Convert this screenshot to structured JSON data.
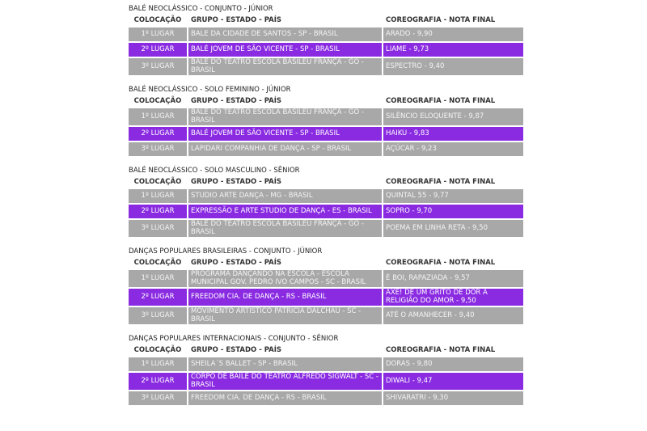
{
  "sections": [
    {
      "title": "BALÉ NEOCLÁSSICO - CONJUNTO - JÚNIOR",
      "header": [
        "COLOCAÇÃO",
        "GRUPO - ESTADO - PAÍS",
        "COREOGRAFIA - NOTA FINAL"
      ],
      "rows": [
        [
          "1º LUGAR",
          "BALE DA CIDADE DE SANTOS - SP - BRASIL",
          "ARADO - 9,90"
        ],
        [
          "2º LUGAR",
          "BALÉ JOVEM DE SÃO VICENTE - SP - BRASIL",
          "LIAME - 9,73"
        ],
        [
          "3º LUGAR",
          "BALÉ DO TEATRO ESCOLA BASILEU FRANÇA - GO - BRASIL",
          "ESPECTRO - 9,40"
        ]
      ]
    },
    {
      "title": "BALÉ NEOCLÁSSICO - SOLO FEMININO - JÚNIOR",
      "header": [
        "COLOCAÇÃO",
        "GRUPO - ESTADO - PAÍS",
        "COREOGRAFIA - NOTA FINAL"
      ],
      "rows": [
        [
          "1º LUGAR",
          "BALÉ DO TEATRO ESCOLA BASILEU FRANÇA - GO - BRASIL",
          "SILÊNCIO ELOQUENTE - 9,87"
        ],
        [
          "2º LUGAR",
          "BALÉ JOVEM DE SÃO VICENTE - SP - BRASIL",
          "HAIKU - 9,83"
        ],
        [
          "3º LUGAR",
          "LAPIDARI COMPANHIA DE DANÇA - SP - BRASIL",
          "AÇÚCAR - 9,23"
        ]
      ]
    },
    {
      "title": "BALÉ NEOCLÁSSICO - SOLO MASCULINO - SÊNIOR",
      "header": [
        "COLOCAÇÃO",
        "GRUPO - ESTADO - PAÍS",
        "COREOGRAFIA - NOTA FINAL"
      ],
      "rows": [
        [
          "1º LUGAR",
          "STUDIO ARTE DANÇA - MG - BRASIL",
          "QUINTAL 55 - 9,77"
        ],
        [
          "2º LUGAR",
          "EXPRESSÃO E ARTE STUDIO DE DANÇA - ES - BRASIL",
          "SOPRO - 9,70"
        ],
        [
          "3º LUGAR",
          "BALÉ DO TEATRO ESCOLA BASILEU FRANÇA - GO - BRASIL",
          "POEMA EM LINHA RETA - 9,50"
        ]
      ]
    },
    {
      "title": "DANÇAS POPULARES BRASILEIRAS - CONJUNTO - JÚNIOR",
      "header": [
        "COLOCAÇÃO",
        "GRUPO - ESTADO - PAÍS",
        "COREOGRAFIA - NOTA FINAL"
      ],
      "rows": [
        [
          "1º LUGAR",
          "PROGRAMA DANÇANDO NA ESCOLA - ESCOLA MUNICIPAL GOV. PEDRO IVO CAMPOS - SC - BRASIL",
          "É BOI, RAPAZIADA - 9,57"
        ],
        [
          "2º LUGAR",
          "FREEDOM CIA. DE DANÇA - RS - BRASIL",
          "AXÉ! DE UM GRITO DE DOR A RELIGIÃO DO AMOR - 9,50"
        ],
        [
          "3º LUGAR",
          "MOVIMENTO ARTÍSTICO PATRICIA DALCHAU - SC - BRASIL",
          "ATÉ O AMANHECER - 9,40"
        ]
      ]
    },
    {
      "title": "DANÇAS POPULARES INTERNACIONAIS - CONJUNTO - SÊNIOR",
      "header": [
        "COLOCAÇÃO",
        "GRUPO - ESTADO - PAÍS",
        "COREOGRAFIA - NOTA FINAL"
      ],
      "rows": [
        [
          "1º LUGAR",
          "SHEILA´S BALLET - SP - BRASIL",
          "DORAS - 9,80"
        ],
        [
          "2º LUGAR",
          "CORPO DE BAILE DO TEATRO ALFREDO SIGWALT - SC - BRASIL",
          "DIWALI - 9,47"
        ],
        [
          "3º LUGAR",
          "FREEDOM CIA. DE DANÇA - RS - BRASIL",
          "SHIVARATRI - 9,30"
        ]
      ]
    }
  ]
}
